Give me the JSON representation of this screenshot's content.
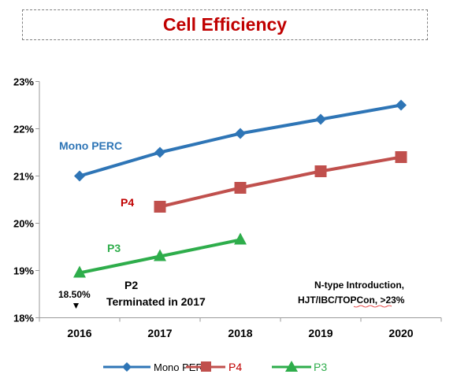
{
  "chart_data": {
    "type": "line",
    "title": "Cell Efficiency",
    "x": [
      "2016",
      "2017",
      "2018",
      "2019",
      "2020"
    ],
    "y_ticks": [
      "18%",
      "19%",
      "20%",
      "21%",
      "22%",
      "23%"
    ],
    "ylim": [
      18,
      23
    ],
    "grid": false,
    "legend_position": "bottom",
    "series": [
      {
        "name": "Mono PERC",
        "color": "#2e75b6",
        "marker": "diamond",
        "values": [
          21.0,
          21.5,
          21.9,
          22.2,
          22.5
        ]
      },
      {
        "name": "P4",
        "color": "#c0504d",
        "marker": "square",
        "values": [
          null,
          20.35,
          20.75,
          21.1,
          21.4
        ]
      },
      {
        "name": "P3",
        "color": "#2ead4b",
        "marker": "triangle",
        "values": [
          18.95,
          19.3,
          19.65,
          null,
          null
        ]
      }
    ],
    "series_labels": [
      {
        "text": "Mono PERC",
        "color": "#2e75b6"
      },
      {
        "text": "P4",
        "color": "#c00000"
      },
      {
        "text": "P3",
        "color": "#2ead4b"
      }
    ],
    "annotations": {
      "p2_value": "18.50%",
      "p2_title": "P2",
      "p2_note": "Terminated in 2017",
      "ntype_line1": "N-type Introduction,",
      "ntype_line2": "HJT/IBC/TOPCon, >23%"
    },
    "legend_labels": [
      "Mono PERC",
      "P4",
      "P3"
    ]
  }
}
